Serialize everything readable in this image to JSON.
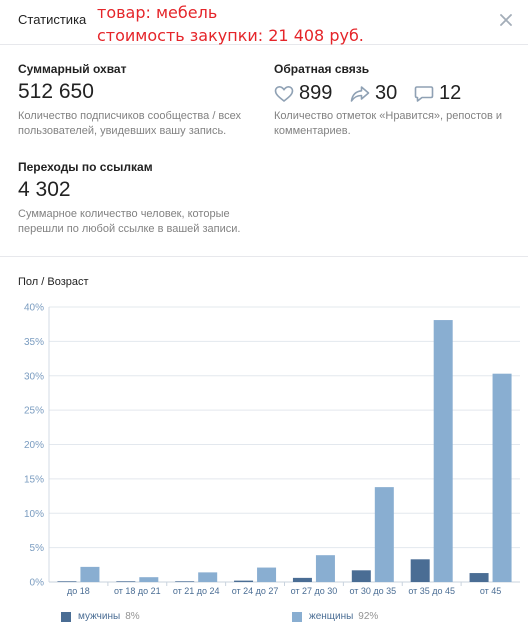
{
  "header": {
    "title": "Статистика",
    "annotation_line1": "товар: мебель",
    "annotation_line2": "стоимость закупки: 21 408 руб."
  },
  "reach": {
    "title": "Суммарный охват",
    "value": "512 650",
    "desc_line1": "Количество подписчиков сообщества / всех",
    "desc_line2": "пользователей, увидевших вашу запись."
  },
  "feedback": {
    "title": "Обратная связь",
    "likes": "899",
    "reposts": "30",
    "comments": "12",
    "desc_line1": "Количество отметок «Нравится», репостов и",
    "desc_line2": "комментариев."
  },
  "clicks": {
    "title": "Переходы по ссылкам",
    "value": "4 302",
    "desc_line1": "Суммарное количество человек, которые",
    "desc_line2": "перешли по любой ссылке в вашей записи."
  },
  "icons": {
    "close": "close-icon",
    "likes": "heart-icon",
    "reposts": "share-arrow-icon",
    "comments": "comment-icon"
  },
  "chart_title": "Пол / Возраст",
  "chart_data": {
    "type": "bar",
    "categories": [
      "до 18",
      "от 18 до 21",
      "от 21 до 24",
      "от 24 до 27",
      "от 27 до 30",
      "от 30 до 35",
      "от 35 до 45",
      "от 45"
    ],
    "series": [
      {
        "name": "мужчины",
        "color": "#4a6d94",
        "values": [
          0.1,
          0.1,
          0.1,
          0.2,
          0.6,
          1.7,
          3.3,
          1.3
        ]
      },
      {
        "name": "женщины",
        "color": "#89aed1",
        "values": [
          2.2,
          0.7,
          1.4,
          2.1,
          3.9,
          13.8,
          38.1,
          30.3
        ]
      }
    ],
    "y_ticks": [
      "0%",
      "5%",
      "10%",
      "15%",
      "20%",
      "25%",
      "30%",
      "35%",
      "40%"
    ],
    "ylim": [
      0,
      40
    ],
    "grid": true,
    "legend_position": "bottom"
  },
  "legend": [
    {
      "name": "мужчины",
      "percent": "8%"
    },
    {
      "name": "женщины",
      "percent": "92%"
    }
  ]
}
